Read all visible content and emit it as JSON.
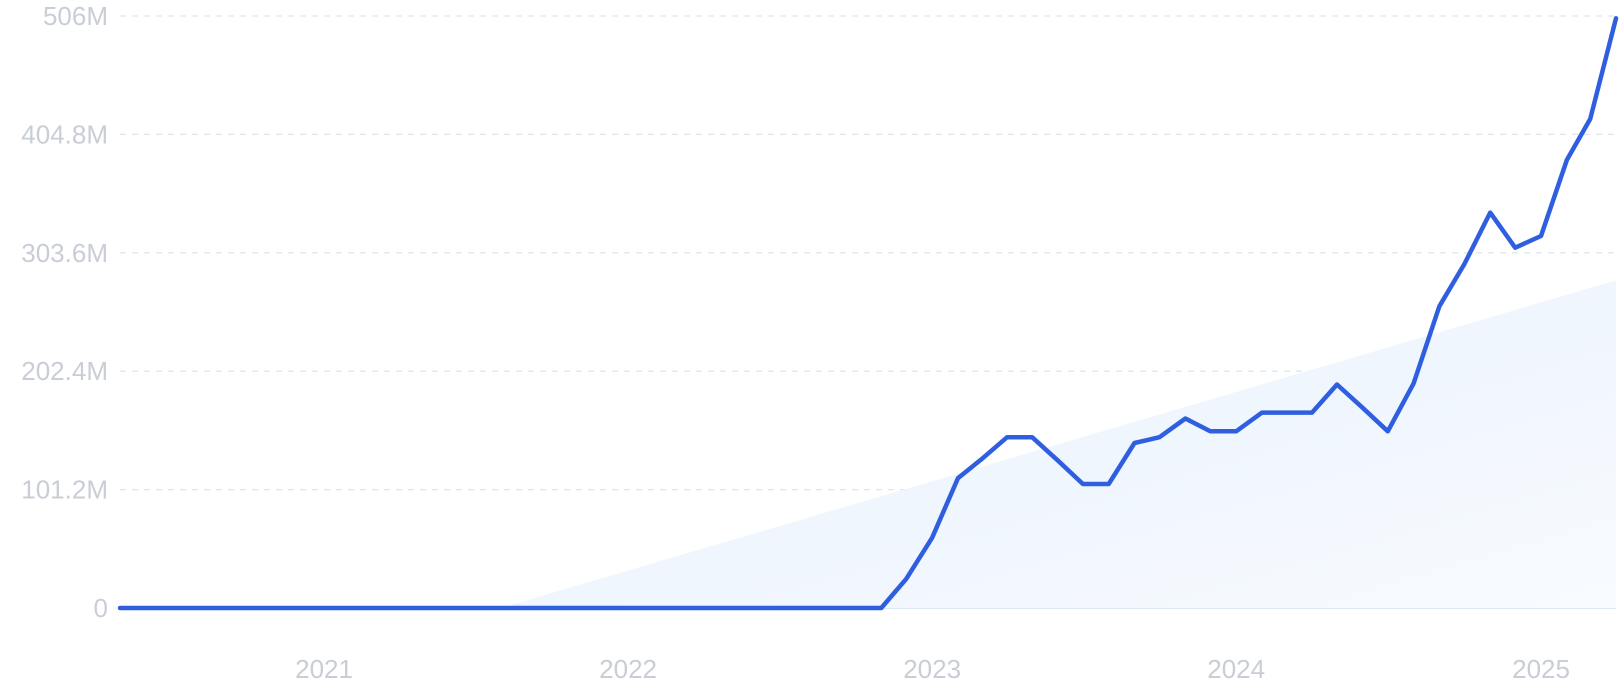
{
  "chart_data": {
    "type": "line",
    "y_ticks": [
      "0",
      "101.2M",
      "202.4M",
      "303.6M",
      "404.8M",
      "506M"
    ],
    "ylim": [
      0,
      506000000
    ],
    "x_ticks": [
      "2021",
      "2022",
      "2023",
      "2024",
      "2025"
    ],
    "xlim": [
      "2020-05-01",
      "2025-04-01"
    ],
    "grid": true,
    "colors": {
      "line": "#2f5fe0",
      "trend_fill": "#e8f1fc",
      "grid": "#dfe6ef",
      "tick_text": "#c9cdd6"
    },
    "series": [
      {
        "values": [
          {
            "x": "2020-05-01",
            "y": 0
          },
          {
            "x": "2022-11-01",
            "y": 0
          },
          {
            "x": "2022-12-01",
            "y": 25000000
          },
          {
            "x": "2023-01-01",
            "y": 60000000
          },
          {
            "x": "2023-02-01",
            "y": 111000000
          },
          {
            "x": "2023-03-01",
            "y": 127000000
          },
          {
            "x": "2023-04-01",
            "y": 146000000
          },
          {
            "x": "2023-05-01",
            "y": 146000000
          },
          {
            "x": "2023-06-01",
            "y": 126000000
          },
          {
            "x": "2023-07-01",
            "y": 106000000
          },
          {
            "x": "2023-08-01",
            "y": 106000000
          },
          {
            "x": "2023-09-01",
            "y": 141000000
          },
          {
            "x": "2023-10-01",
            "y": 146000000
          },
          {
            "x": "2023-11-01",
            "y": 162000000
          },
          {
            "x": "2023-12-01",
            "y": 151000000
          },
          {
            "x": "2024-01-01",
            "y": 151000000
          },
          {
            "x": "2024-02-01",
            "y": 167000000
          },
          {
            "x": "2024-03-01",
            "y": 167000000
          },
          {
            "x": "2024-04-01",
            "y": 167000000
          },
          {
            "x": "2024-05-01",
            "y": 191000000
          },
          {
            "x": "2024-06-01",
            "y": 171000000
          },
          {
            "x": "2024-07-01",
            "y": 151000000
          },
          {
            "x": "2024-08-01",
            "y": 192000000
          },
          {
            "x": "2024-09-01",
            "y": 258000000
          },
          {
            "x": "2024-10-01",
            "y": 294000000
          },
          {
            "x": "2024-11-01",
            "y": 338000000
          },
          {
            "x": "2024-12-01",
            "y": 308000000
          },
          {
            "x": "2025-01-01",
            "y": 318000000
          },
          {
            "x": "2025-02-01",
            "y": 383000000
          },
          {
            "x": "2025-03-01",
            "y": 418000000
          },
          {
            "x": "2025-04-01",
            "y": 504000000
          }
        ]
      }
    ],
    "trend": {
      "start": {
        "x": "2021-08-01",
        "y": 0
      },
      "end": {
        "x": "2025-04-01",
        "y": 280000000
      }
    }
  }
}
